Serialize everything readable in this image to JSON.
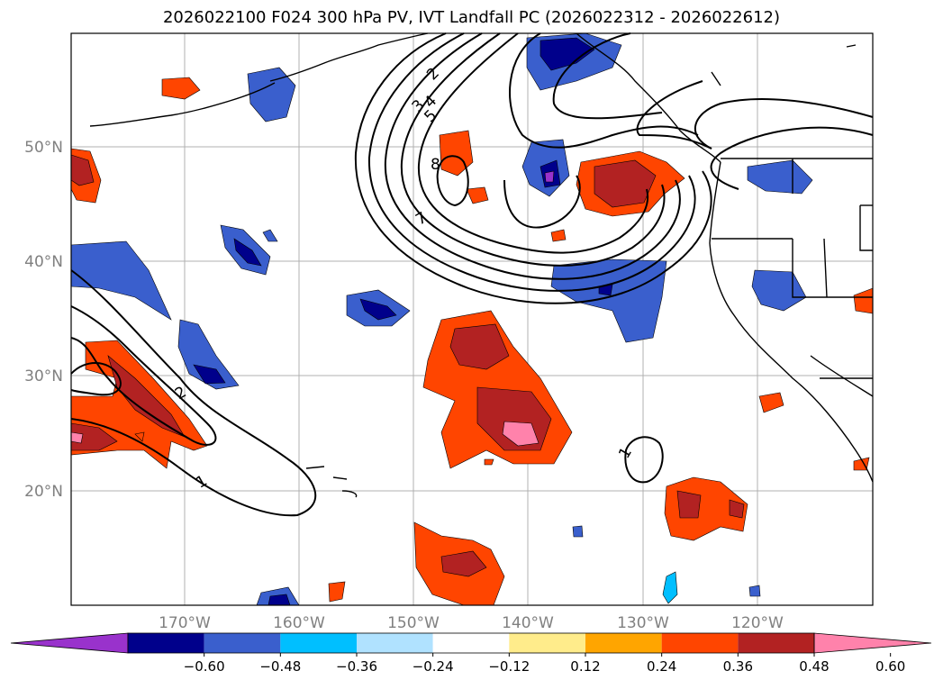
{
  "title": "2026022100 F024 300 hPa PV, IVT Landfall PC (2026022312 - 2026022612)",
  "lat_labels": [
    "50°N",
    "40°N",
    "30°N",
    "20°N"
  ],
  "lon_labels": [
    "170°W",
    "160°W",
    "150°W",
    "140°W",
    "130°W",
    "120°W"
  ],
  "colorbar": {
    "colors": [
      "#9932cc",
      "#00008b",
      "#3a5fcd",
      "#00bfff",
      "#b0e2ff",
      "#ffffff",
      "#ffec8b",
      "#ffa500",
      "#ff4500",
      "#b22222",
      "#ff82ab"
    ],
    "labels": [
      "−0.60",
      "−0.48",
      "−0.36",
      "−0.24",
      "−0.12",
      "0.12",
      "0.24",
      "0.36",
      "0.48",
      "0.60"
    ]
  },
  "contour_labels": [
    "2",
    "3",
    "4",
    "5",
    "8",
    "7",
    "2",
    "1",
    "1"
  ]
}
